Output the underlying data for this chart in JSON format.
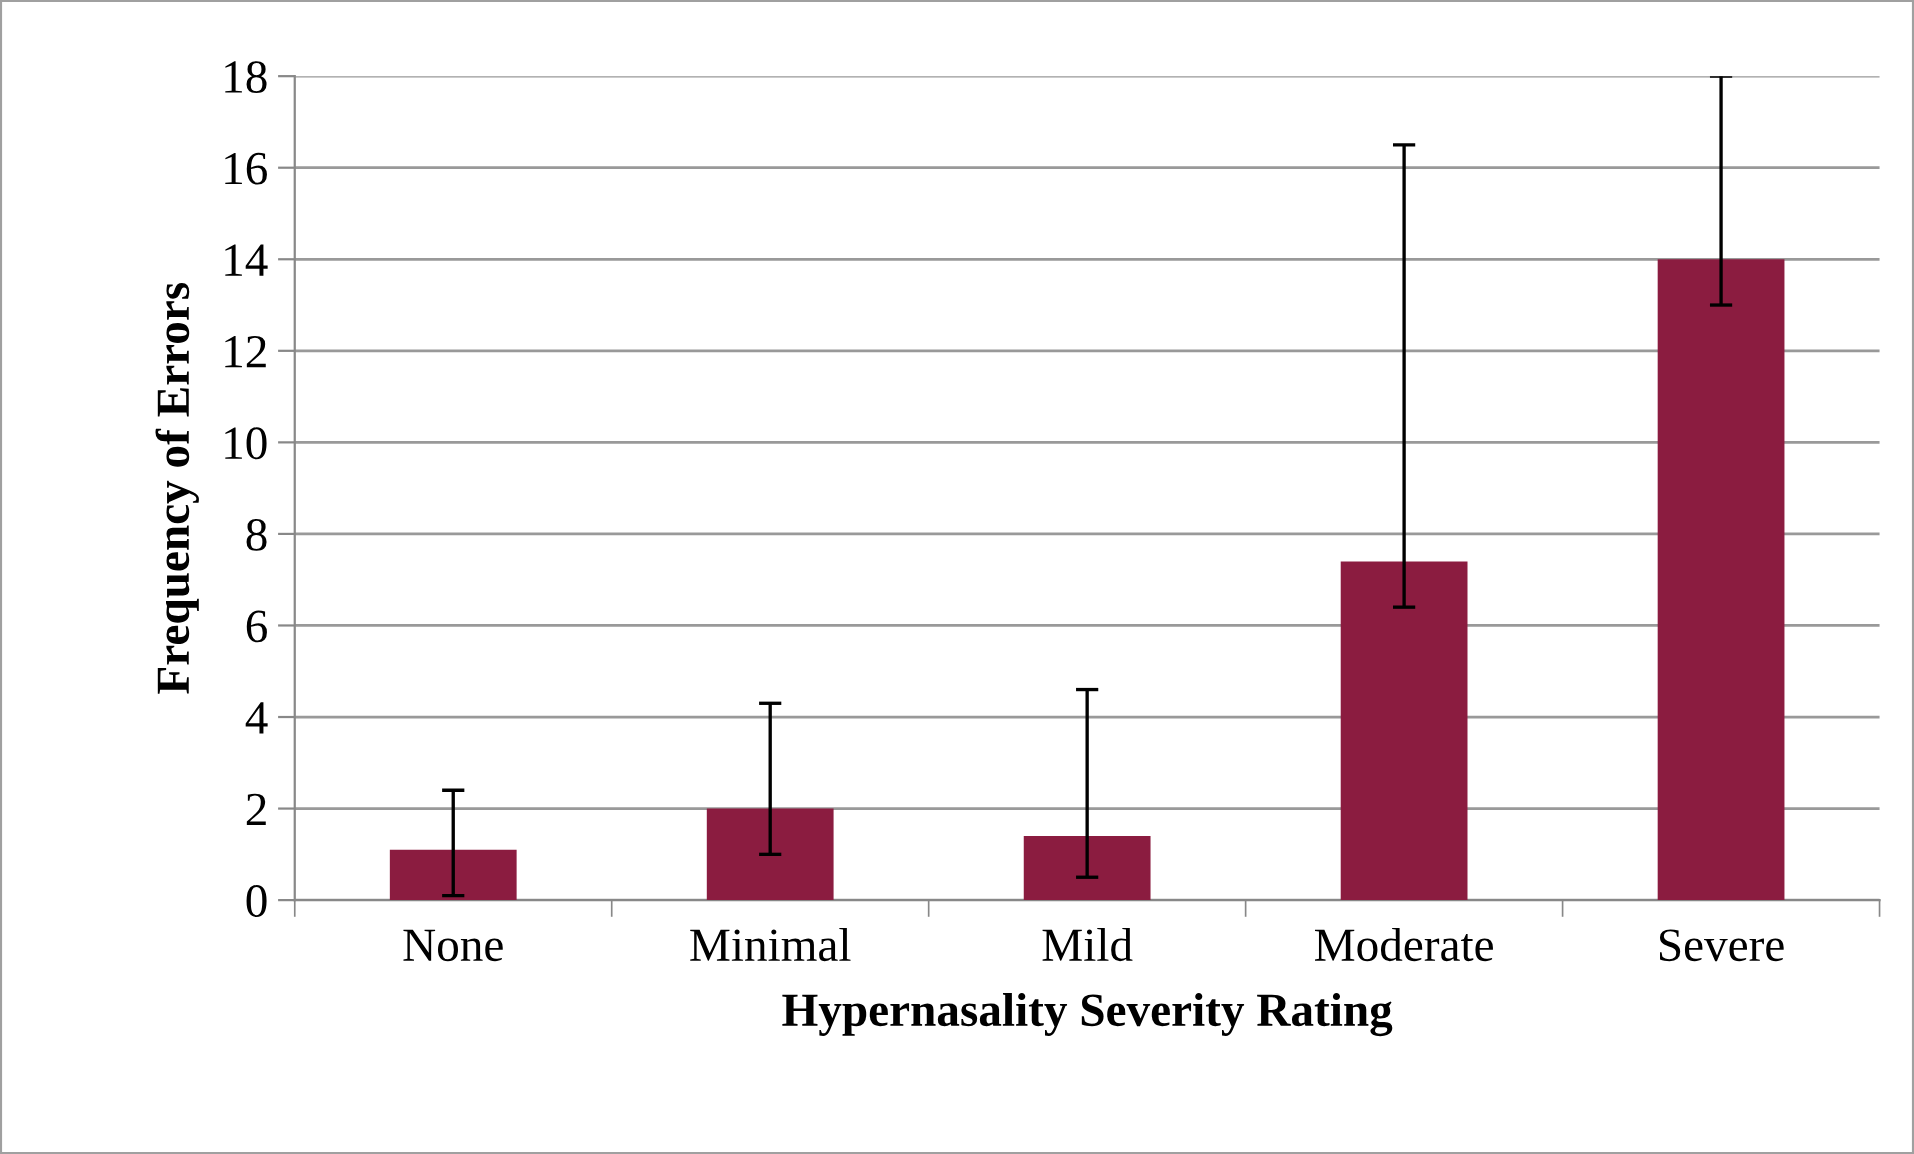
{
  "chart_data": {
    "type": "bar",
    "xlabel": "Hypernasality Severity Rating",
    "ylabel": "Frequency of Errors",
    "categories": [
      "None",
      "Minimal",
      "Mild",
      "Moderate",
      "Severe"
    ],
    "values": [
      1.1,
      2.0,
      1.4,
      7.4,
      14.0
    ],
    "errors": [
      [
        0.1,
        2.4
      ],
      [
        1.0,
        4.3
      ],
      [
        0.5,
        4.6
      ],
      [
        6.4,
        16.5
      ],
      [
        13.0,
        18.0
      ]
    ],
    "color": "#8b1c40",
    "ylim": [
      0,
      18
    ],
    "yticks": [
      0,
      2,
      4,
      6,
      8,
      10,
      12,
      14,
      16,
      18
    ],
    "grid": "y",
    "legend": false
  }
}
